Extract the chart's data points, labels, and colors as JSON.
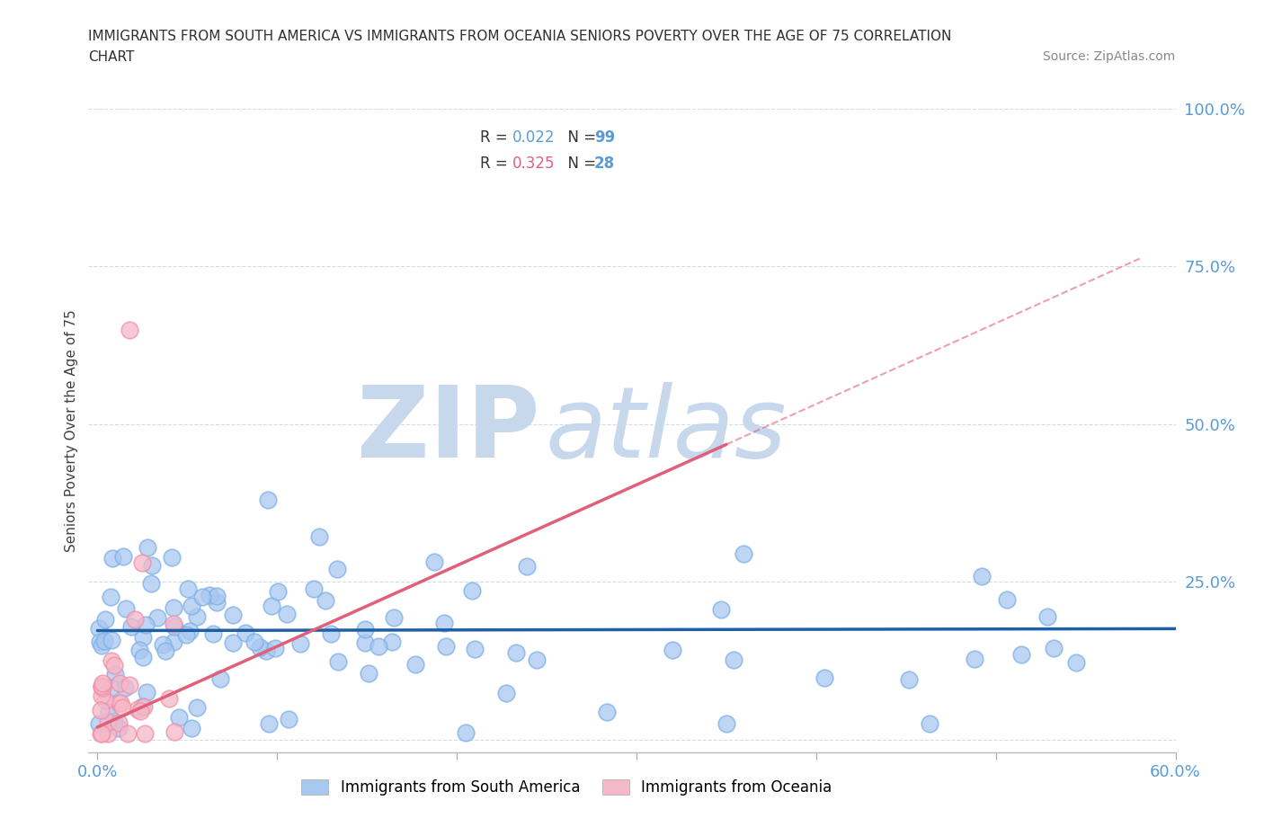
{
  "title_line1": "IMMIGRANTS FROM SOUTH AMERICA VS IMMIGRANTS FROM OCEANIA SENIORS POVERTY OVER THE AGE OF 75 CORRELATION",
  "title_line2": "CHART",
  "source": "Source: ZipAtlas.com",
  "ylabel": "Seniors Poverty Over the Age of 75",
  "xlim": [
    -0.005,
    0.6
  ],
  "ylim": [
    -0.02,
    1.0
  ],
  "xtick_positions": [
    0.0,
    0.1,
    0.2,
    0.3,
    0.4,
    0.5,
    0.6
  ],
  "xticklabels": [
    "0.0%",
    "",
    "",
    "",
    "",
    "",
    "60.0%"
  ],
  "ytick_positions": [
    0.0,
    0.25,
    0.5,
    0.75,
    1.0
  ],
  "ytick_labels": [
    "",
    "25.0%",
    "50.0%",
    "75.0%",
    "100.0%"
  ],
  "south_america_R": 0.022,
  "south_america_N": 99,
  "oceania_R": 0.325,
  "oceania_N": 28,
  "south_america_color": "#a8c8f0",
  "oceania_color": "#f5b8c8",
  "south_america_edge_color": "#7eb0e8",
  "oceania_edge_color": "#f090a8",
  "south_america_line_color": "#1f5fa6",
  "oceania_line_color": "#e0607a",
  "background_color": "#ffffff",
  "watermark_zip": "ZIP",
  "watermark_atlas": "atlas",
  "watermark_color": "#c8d8ec",
  "grid_color": "#c8d4e0",
  "title_color": "#303030",
  "axis_label_color": "#404040",
  "tick_label_color": "#5b9bd5",
  "legend_R_color_sa": "#5b9bd5",
  "legend_R_color_oc": "#e06080",
  "legend_N_color": "#5b9bd5",
  "sa_line_y_intercept": 0.173,
  "sa_line_slope": 0.005,
  "oc_line_y_intercept": 0.02,
  "oc_line_slope": 1.28,
  "oc_line_xmax_solid": 0.35,
  "oc_line_xmax_dash": 0.58
}
